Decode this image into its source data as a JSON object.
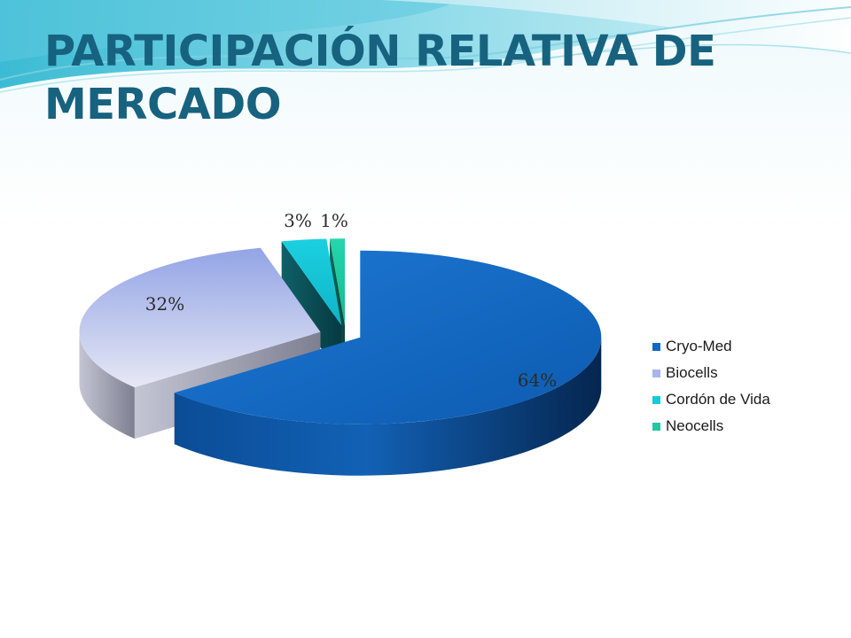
{
  "slide": {
    "title": "PARTICIPACIÓN RELATIVA DE MERCADO"
  },
  "chart_data": {
    "type": "pie",
    "labels": [
      "Cryo-Med",
      "Biocells",
      "Cordón de Vida",
      "Neocells"
    ],
    "values": [
      64,
      32,
      3,
      1
    ],
    "value_labels": [
      "64%",
      "32%",
      "3%",
      "1%"
    ],
    "colors": [
      "#1268c2",
      "#a9b6ec",
      "#17c9d9",
      "#1ec9a4"
    ],
    "legend_position": "right",
    "exploded": true,
    "style": "3d"
  }
}
